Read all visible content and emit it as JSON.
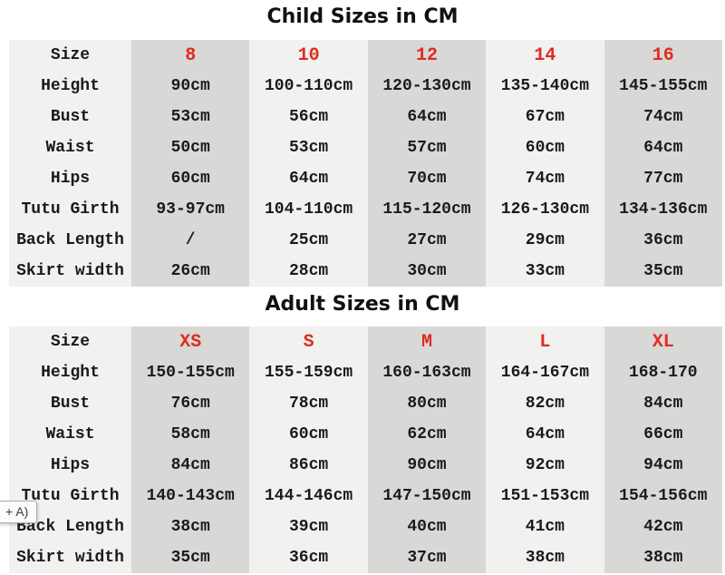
{
  "chart_data": [
    {
      "type": "table",
      "title": "Child Sizes in CM",
      "columns": [
        "Size",
        "8",
        "10",
        "12",
        "14",
        "16"
      ],
      "rows": [
        [
          "Height",
          "90cm",
          "100-110cm",
          "120-130cm",
          "135-140cm",
          "145-155cm"
        ],
        [
          "Bust",
          "53cm",
          "56cm",
          "64cm",
          "67cm",
          "74cm"
        ],
        [
          "Waist",
          "50cm",
          "53cm",
          "57cm",
          "60cm",
          "64cm"
        ],
        [
          "Hips",
          "60cm",
          "64cm",
          "70cm",
          "74cm",
          "77cm"
        ],
        [
          "Tutu Girth",
          "93-97cm",
          "104-110cm",
          "115-120cm",
          "126-130cm",
          "134-136cm"
        ],
        [
          "Back Length",
          "/",
          "25cm",
          "27cm",
          "29cm",
          "36cm"
        ],
        [
          "Skirt width",
          "26cm",
          "28cm",
          "30cm",
          "33cm",
          "35cm"
        ]
      ]
    },
    {
      "type": "table",
      "title": "Adult Sizes in CM",
      "columns": [
        "Size",
        "XS",
        "S",
        "M",
        "L",
        "XL"
      ],
      "rows": [
        [
          "Height",
          "150-155cm",
          "155-159cm",
          "160-163cm",
          "164-167cm",
          "168-170"
        ],
        [
          "Bust",
          "76cm",
          "78cm",
          "80cm",
          "82cm",
          "84cm"
        ],
        [
          "Waist",
          "58cm",
          "60cm",
          "62cm",
          "64cm",
          "66cm"
        ],
        [
          "Hips",
          "84cm",
          "86cm",
          "90cm",
          "92cm",
          "94cm"
        ],
        [
          "Tutu Girth",
          "140-143cm",
          "144-146cm",
          "147-150cm",
          "151-153cm",
          "154-156cm"
        ],
        [
          "Back Length",
          "38cm",
          "39cm",
          "40cm",
          "41cm",
          "42cm"
        ],
        [
          "Skirt width",
          "35cm",
          "36cm",
          "37cm",
          "38cm",
          "38cm"
        ]
      ]
    }
  ],
  "tooltip": {
    "text": "+ A)"
  },
  "colors": {
    "accent_red": "#e02b20",
    "col_light": "#f1f1ef",
    "col_dark": "#d8d8d6",
    "text_color": "#1a1a1a"
  }
}
